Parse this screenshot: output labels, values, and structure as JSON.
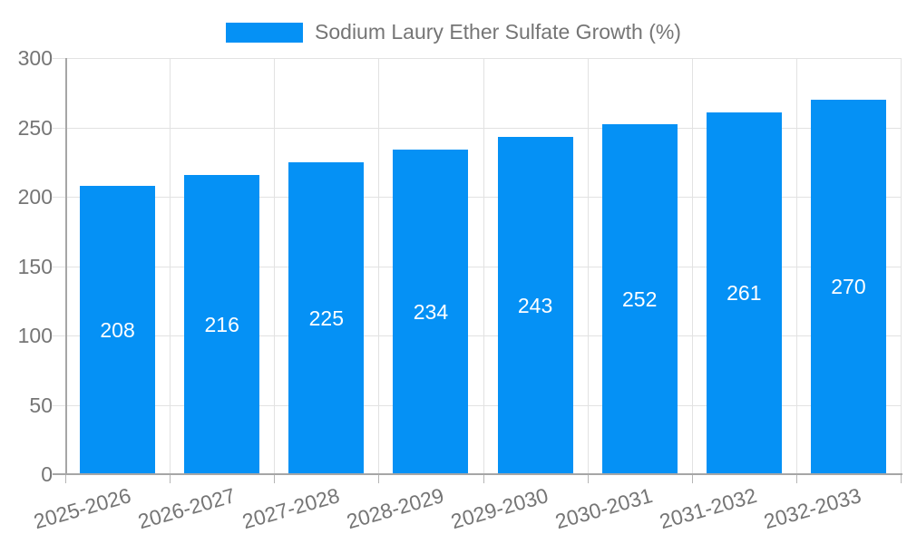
{
  "chart_data": {
    "type": "bar",
    "legend": "Sodium Laury Ether Sulfate Growth (%)",
    "legend_position": "top-center",
    "categories": [
      "2025-2026",
      "2026-2027",
      "2027-2028",
      "2028-2029",
      "2029-2030",
      "2030-2031",
      "2031-2032",
      "2032-2033"
    ],
    "values": [
      208,
      216,
      225,
      234,
      243,
      252,
      261,
      270
    ],
    "ylim": [
      0,
      300
    ],
    "yticks": [
      0,
      50,
      100,
      150,
      200,
      250,
      300
    ],
    "grid": true,
    "value_labels": "inside-center",
    "colors": {
      "bar": "#0591f5",
      "value_label": "#ffffff",
      "text": "#757575",
      "axis": "#a6a6a6",
      "gridline": "#e2e2e2",
      "tick": "#b5b5b5",
      "background": "#ffffff"
    }
  }
}
